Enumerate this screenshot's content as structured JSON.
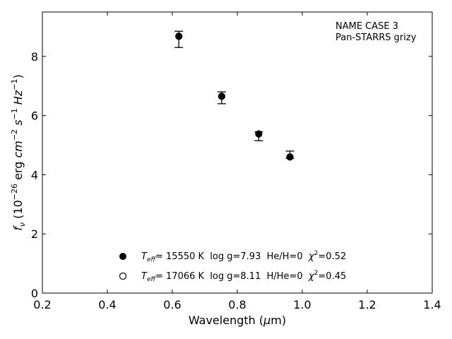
{
  "chart_data": {
    "type": "scatter",
    "title": "",
    "xlabel": "Wavelength (μm)",
    "ylabel": "f_ν (10^-26 erg cm^-2 s^-1 Hz^-1)",
    "xlim": [
      0.2,
      1.4
    ],
    "ylim": [
      0,
      9.5
    ],
    "xticks": [
      "0.2",
      "0.4",
      "0.6",
      "0.8",
      "1.0",
      "1.2",
      "1.4"
    ],
    "yticks": [
      "0",
      "2",
      "4",
      "6",
      "8"
    ],
    "grid": false,
    "annotation": {
      "line1": "NAME CASE 3",
      "line2": "Pan-STARRS grizy"
    },
    "observed": {
      "x": [
        0.62,
        0.752,
        0.866,
        0.962
      ],
      "y": [
        8.6,
        6.6,
        5.35,
        4.65
      ],
      "yerr_low": [
        0.3,
        0.2,
        0.2,
        0.1
      ],
      "yerr_high": [
        0.25,
        0.2,
        0.1,
        0.15
      ]
    },
    "series": [
      {
        "marker": "filled-circle",
        "x": [
          0.62,
          0.752,
          0.866,
          0.962
        ],
        "y": [
          8.68,
          6.65,
          5.38,
          4.6
        ],
        "legend": {
          "teff_symbol": "T",
          "teff_sub": "eff",
          "teff_value": "= 15550 K  log g=7.93  He/H=0  ",
          "chi_symbol": "χ",
          "chi_sup": "2",
          "chi_value": "=0.52"
        }
      },
      {
        "marker": "open-circle",
        "x": [],
        "y": [],
        "legend": {
          "teff_symbol": "T",
          "teff_sub": "eff",
          "teff_value": "= 17066 K  log g=8.11  H/He=0  ",
          "chi_symbol": "χ",
          "chi_sup": "2",
          "chi_value": "=0.45"
        }
      }
    ]
  }
}
